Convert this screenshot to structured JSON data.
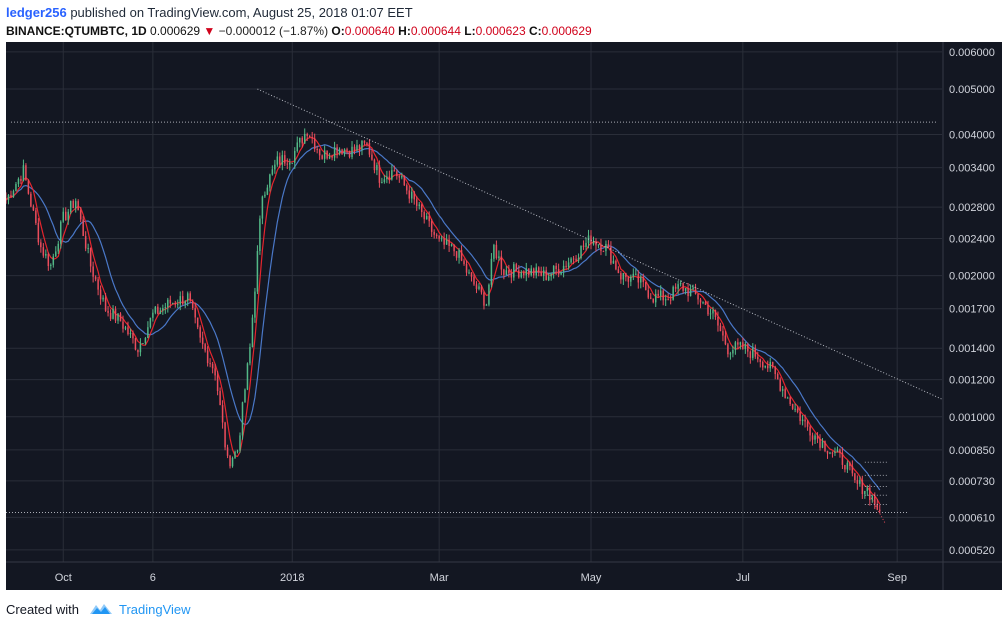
{
  "header": {
    "author": "ledger256",
    "published_text": "published on TradingView.com, August 25, 2018 01:07 EET",
    "symbol": "BINANCE:QTUMBTC, 1D",
    "last_price": "0.000629",
    "change_arrow": "▼",
    "change": "−0.000012 (−1.87%)",
    "o_label": "O:",
    "o_value": "0.000640",
    "h_label": "H:",
    "h_value": "0.000644",
    "l_label": "L:",
    "l_value": "0.000623",
    "c_label": "C:",
    "c_value": "0.000629"
  },
  "footer": {
    "created_with": "Created with",
    "brand": "TradingView"
  },
  "colors": {
    "background": "#131722",
    "up_candle": "#53b987",
    "down_candle": "#eb4d5c",
    "ma_fast": "#e5252d",
    "ma_slow": "#4a78c8",
    "trendline": "#d1d4dc",
    "grid": "#2a2e39",
    "accent": "#2962ff"
  },
  "chart_data": {
    "type": "candlestick",
    "y_scale": "log",
    "ylim": [
      0.00049,
      0.0063
    ],
    "y_ticks": [
      "0.006000",
      "0.005000",
      "0.004000",
      "0.003400",
      "0.002800",
      "0.002400",
      "0.002000",
      "0.001700",
      "0.001400",
      "0.001200",
      "0.001000",
      "0.000850",
      "0.000730",
      "0.000610",
      "0.000520"
    ],
    "x_ticks": [
      "Oct",
      "6",
      "2018",
      "Mar",
      "May",
      "Jul",
      "Sep"
    ],
    "x_tick_dates": [
      "2017-10-01",
      "2017-11-06",
      "2018-01-01",
      "2018-03-01",
      "2018-05-01",
      "2018-07-01",
      "2018-09-01"
    ],
    "x_range": [
      "2017-09-08",
      "2018-09-19"
    ],
    "last_date": "2018-08-25",
    "anchors": [
      [
        "2017-09-08",
        0.0029
      ],
      [
        "2017-09-15",
        0.00335
      ],
      [
        "2017-09-22",
        0.0023
      ],
      [
        "2017-09-26",
        0.0021
      ],
      [
        "2017-10-01",
        0.00265
      ],
      [
        "2017-10-06",
        0.0029
      ],
      [
        "2017-10-12",
        0.0021
      ],
      [
        "2017-10-18",
        0.0017
      ],
      [
        "2017-10-24",
        0.0016
      ],
      [
        "2017-10-31",
        0.0014
      ],
      [
        "2017-11-06",
        0.00165
      ],
      [
        "2017-11-13",
        0.00175
      ],
      [
        "2017-11-20",
        0.0018
      ],
      [
        "2017-11-25",
        0.00145
      ],
      [
        "2017-12-01",
        0.00125
      ],
      [
        "2017-12-06",
        0.0008
      ],
      [
        "2017-12-10",
        0.00085
      ],
      [
        "2017-12-15",
        0.0014
      ],
      [
        "2017-12-20",
        0.003
      ],
      [
        "2017-12-26",
        0.0035
      ],
      [
        "2018-01-01",
        0.0036
      ],
      [
        "2018-01-07",
        0.0041
      ],
      [
        "2018-01-13",
        0.0036
      ],
      [
        "2018-01-19",
        0.00375
      ],
      [
        "2018-01-25",
        0.0037
      ],
      [
        "2018-01-31",
        0.0038
      ],
      [
        "2018-02-05",
        0.00325
      ],
      [
        "2018-02-11",
        0.00335
      ],
      [
        "2018-02-17",
        0.003
      ],
      [
        "2018-02-22",
        0.0027
      ],
      [
        "2018-03-01",
        0.00235
      ],
      [
        "2018-03-08",
        0.00225
      ],
      [
        "2018-03-14",
        0.00195
      ],
      [
        "2018-03-20",
        0.00175
      ],
      [
        "2018-03-23",
        0.0023
      ],
      [
        "2018-03-27",
        0.00205
      ],
      [
        "2018-04-05",
        0.00205
      ],
      [
        "2018-04-13",
        0.002
      ],
      [
        "2018-04-20",
        0.0021
      ],
      [
        "2018-04-26",
        0.00225
      ],
      [
        "2018-05-01",
        0.0024
      ],
      [
        "2018-05-07",
        0.0023
      ],
      [
        "2018-05-13",
        0.002
      ],
      [
        "2018-05-20",
        0.00195
      ],
      [
        "2018-05-26",
        0.0018
      ],
      [
        "2018-06-01",
        0.0018
      ],
      [
        "2018-06-06",
        0.0019
      ],
      [
        "2018-06-13",
        0.0018
      ],
      [
        "2018-06-19",
        0.00165
      ],
      [
        "2018-06-25",
        0.0014
      ],
      [
        "2018-07-01",
        0.0014
      ],
      [
        "2018-07-07",
        0.00135
      ],
      [
        "2018-07-13",
        0.00125
      ],
      [
        "2018-07-19",
        0.0011
      ],
      [
        "2018-07-25",
        0.00098
      ],
      [
        "2018-07-31",
        0.0009
      ],
      [
        "2018-08-05",
        0.00085
      ],
      [
        "2018-08-11",
        0.0008
      ],
      [
        "2018-08-15",
        0.00072
      ],
      [
        "2018-08-20",
        0.0007
      ],
      [
        "2018-08-25",
        0.000629
      ]
    ],
    "horizontal_levels": [
      {
        "name": "resistance",
        "value": 0.00425,
        "from": "2017-09-10",
        "to": "2018-09-17"
      },
      {
        "name": "support",
        "value": 0.000625,
        "from": "2017-09-08",
        "to": "2018-09-05"
      }
    ],
    "trendline": {
      "from": [
        "2017-12-18",
        0.005
      ],
      "to": [
        "2018-09-19",
        0.00109
      ]
    },
    "range_lines": [
      0.0008,
      0.00075,
      0.00071,
      0.00068,
      0.00065
    ],
    "grid": true
  }
}
